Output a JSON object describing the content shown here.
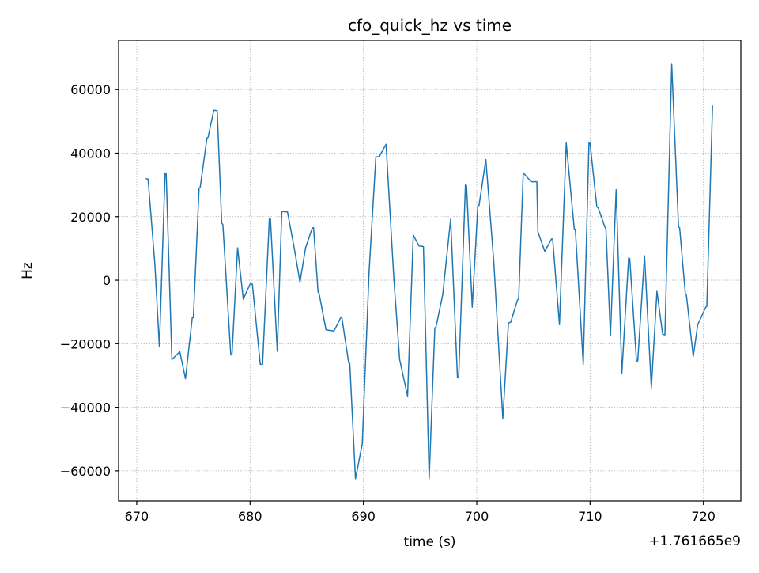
{
  "chart_data": {
    "type": "line",
    "title": "cfo_quick_hz vs time",
    "xlabel": "time (s)",
    "ylabel": "Hz",
    "x_offset_label": "+1.761665e9",
    "xlim": [
      668.4,
      723.3
    ],
    "ylim": [
      -69500,
      75500
    ],
    "xticks": [
      670,
      680,
      690,
      700,
      710,
      720
    ],
    "xtick_labels": [
      "670",
      "680",
      "690",
      "700",
      "710",
      "720"
    ],
    "yticks": [
      -60000,
      -40000,
      -20000,
      0,
      20000,
      40000,
      60000
    ],
    "ytick_labels": [
      "−60000",
      "−40000",
      "−20000",
      "0",
      "20000",
      "40000",
      "60000"
    ],
    "grid": true,
    "series": [
      {
        "color": "#1f77b4",
        "x": [
          670.8,
          671.0,
          671.6,
          672.0,
          672.5,
          672.6,
          673.1,
          673.8,
          674.3,
          674.9,
          675.0,
          675.5,
          675.6,
          676.2,
          676.3,
          676.8,
          677.1,
          677.5,
          677.6,
          678.3,
          678.4,
          678.9,
          679.4,
          680.0,
          680.2,
          680.9,
          681.1,
          681.7,
          681.8,
          682.4,
          682.8,
          683.3,
          683.9,
          684.4,
          684.9,
          685.5,
          685.6,
          686.0,
          686.1,
          686.7,
          687.4,
          688.0,
          688.1,
          688.7,
          688.8,
          689.3,
          689.9,
          690.5,
          691.1,
          691.4,
          692.0,
          692.7,
          693.2,
          693.9,
          694.4,
          694.9,
          695.3,
          695.8,
          696.3,
          696.4,
          697.0,
          697.7,
          698.3,
          698.4,
          699.0,
          699.1,
          699.6,
          700.1,
          700.2,
          700.8,
          701.5,
          702.3,
          702.8,
          703.0,
          703.6,
          703.7,
          704.1,
          704.8,
          705.3,
          705.4,
          706.0,
          706.6,
          706.7,
          707.3,
          707.9,
          708.6,
          708.7,
          709.4,
          709.9,
          710.0,
          710.6,
          710.7,
          711.3,
          711.4,
          711.8,
          712.3,
          712.8,
          713.4,
          713.5,
          714.1,
          714.2,
          714.8,
          715.4,
          715.9,
          716.4,
          716.6,
          717.2,
          717.8,
          717.9,
          718.4,
          718.5,
          719.1,
          719.5,
          720.2,
          720.3,
          720.8
        ],
        "y": [
          32000,
          31800,
          5000,
          -21000,
          33800,
          33500,
          -25000,
          -22500,
          -31000,
          -11800,
          -11800,
          29000,
          29200,
          44800,
          45000,
          53500,
          53400,
          18000,
          17500,
          -23500,
          -23500,
          10200,
          -6000,
          -1200,
          -1200,
          -26500,
          -26500,
          19500,
          19200,
          -22400,
          21600,
          21500,
          10000,
          -600,
          10200,
          16500,
          16500,
          -3700,
          -4300,
          -15600,
          -16000,
          -11800,
          -11800,
          -26000,
          -26200,
          -62500,
          -51500,
          2500,
          38800,
          38900,
          42800,
          0,
          -25000,
          -36500,
          14200,
          10800,
          10600,
          -62500,
          -15000,
          -14800,
          -4500,
          19200,
          -30600,
          -30800,
          30000,
          29800,
          -8500,
          23500,
          23500,
          38000,
          6000,
          -43600,
          -13500,
          -13200,
          -6200,
          -6000,
          33800,
          31000,
          31000,
          15200,
          9100,
          13000,
          13000,
          -14000,
          43200,
          16200,
          16000,
          -26500,
          43200,
          43100,
          23000,
          22900,
          16800,
          16200,
          -17500,
          28500,
          -29300,
          7000,
          6800,
          -25600,
          -25400,
          7700,
          -33900,
          -3500,
          -17000,
          -17200,
          68000,
          16800,
          16500,
          -4200,
          -4800,
          -24000,
          -14000,
          -8500,
          -8300,
          55000
        ]
      }
    ]
  }
}
